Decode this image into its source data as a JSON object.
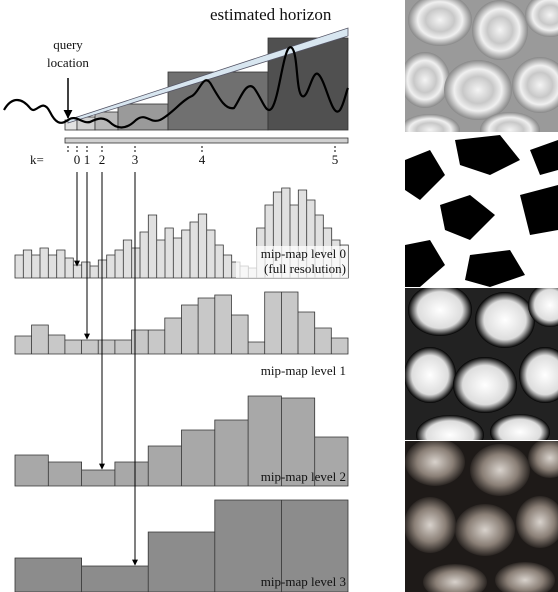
{
  "header": {
    "title": "estimated horizon",
    "query": [
      "query",
      "location"
    ]
  },
  "k_label": "k=",
  "k_values": [
    0,
    1,
    2,
    3,
    4,
    5
  ],
  "levels": [
    {
      "label": "mip-map level 0",
      "sublabel": "(full resolution)"
    },
    {
      "label": "mip-map level 1"
    },
    {
      "label": "mip-map level 2"
    },
    {
      "label": "mip-map level 3"
    }
  ]
}
